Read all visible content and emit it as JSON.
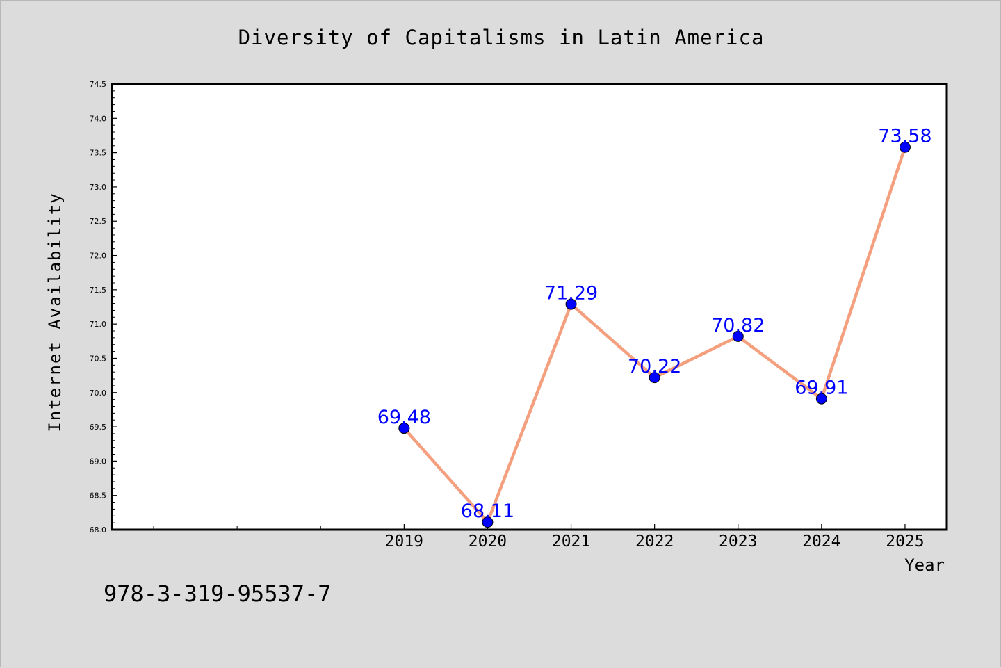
{
  "chart_data": {
    "type": "line",
    "title": "Diversity of Capitalisms in Latin America",
    "xlabel": "Year",
    "ylabel": "Internet Availability",
    "x": [
      2019,
      2020,
      2021,
      2022,
      2023,
      2024,
      2025
    ],
    "x_tick_labels": [
      "2019",
      "2020",
      "2021",
      "2022",
      "2023",
      "2024",
      "2025"
    ],
    "xlim": [
      2015.5,
      2025.5
    ],
    "ylim": [
      68.0,
      74.5
    ],
    "y_tick_labels": [
      "68.0",
      "68.5",
      "69.0",
      "69.5",
      "70.0",
      "70.5",
      "71.0",
      "71.5",
      "72.0",
      "72.5",
      "73.0",
      "73.5",
      "74.0",
      "74.5"
    ],
    "series": [
      {
        "values": [
          69.48,
          68.11,
          71.29,
          70.22,
          70.82,
          69.91,
          73.58
        ],
        "data_labels": [
          "69.48",
          "68.11",
          "71.29",
          "70.22",
          "70.82",
          "69.91",
          "73.58"
        ],
        "line_color": "#f4a07f",
        "marker_color": "#0000ff",
        "label_color": "#0000ff"
      }
    ],
    "grid": false,
    "legend": "none"
  },
  "annotation": {
    "isbn": "978-3-319-95537-7"
  }
}
